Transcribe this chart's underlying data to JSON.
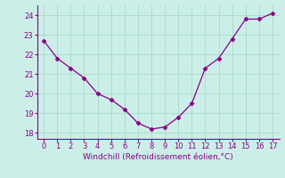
{
  "x": [
    0,
    1,
    2,
    3,
    4,
    5,
    6,
    7,
    8,
    9,
    10,
    11,
    12,
    13,
    14,
    15,
    16,
    17
  ],
  "y": [
    22.7,
    21.8,
    21.3,
    20.8,
    20.0,
    19.7,
    19.2,
    18.5,
    18.2,
    18.3,
    18.8,
    19.5,
    21.3,
    21.8,
    22.8,
    23.8,
    23.8,
    24.1
  ],
  "line_color": "#880088",
  "marker": "D",
  "marker_size": 2.5,
  "bg_color": "#cceee8",
  "grid_color": "#aaddcc",
  "xlabel": "Windchill (Refroidissement éolien,°C)",
  "xlabel_color": "#880088",
  "tick_color": "#880088",
  "spine_color": "#880088",
  "xlim": [
    -0.5,
    17.5
  ],
  "ylim": [
    17.7,
    24.5
  ],
  "yticks": [
    18,
    19,
    20,
    21,
    22,
    23,
    24
  ],
  "xticks": [
    0,
    1,
    2,
    3,
    4,
    5,
    6,
    7,
    8,
    9,
    10,
    11,
    12,
    13,
    14,
    15,
    16,
    17
  ],
  "tick_fontsize": 6,
  "xlabel_fontsize": 6.5
}
